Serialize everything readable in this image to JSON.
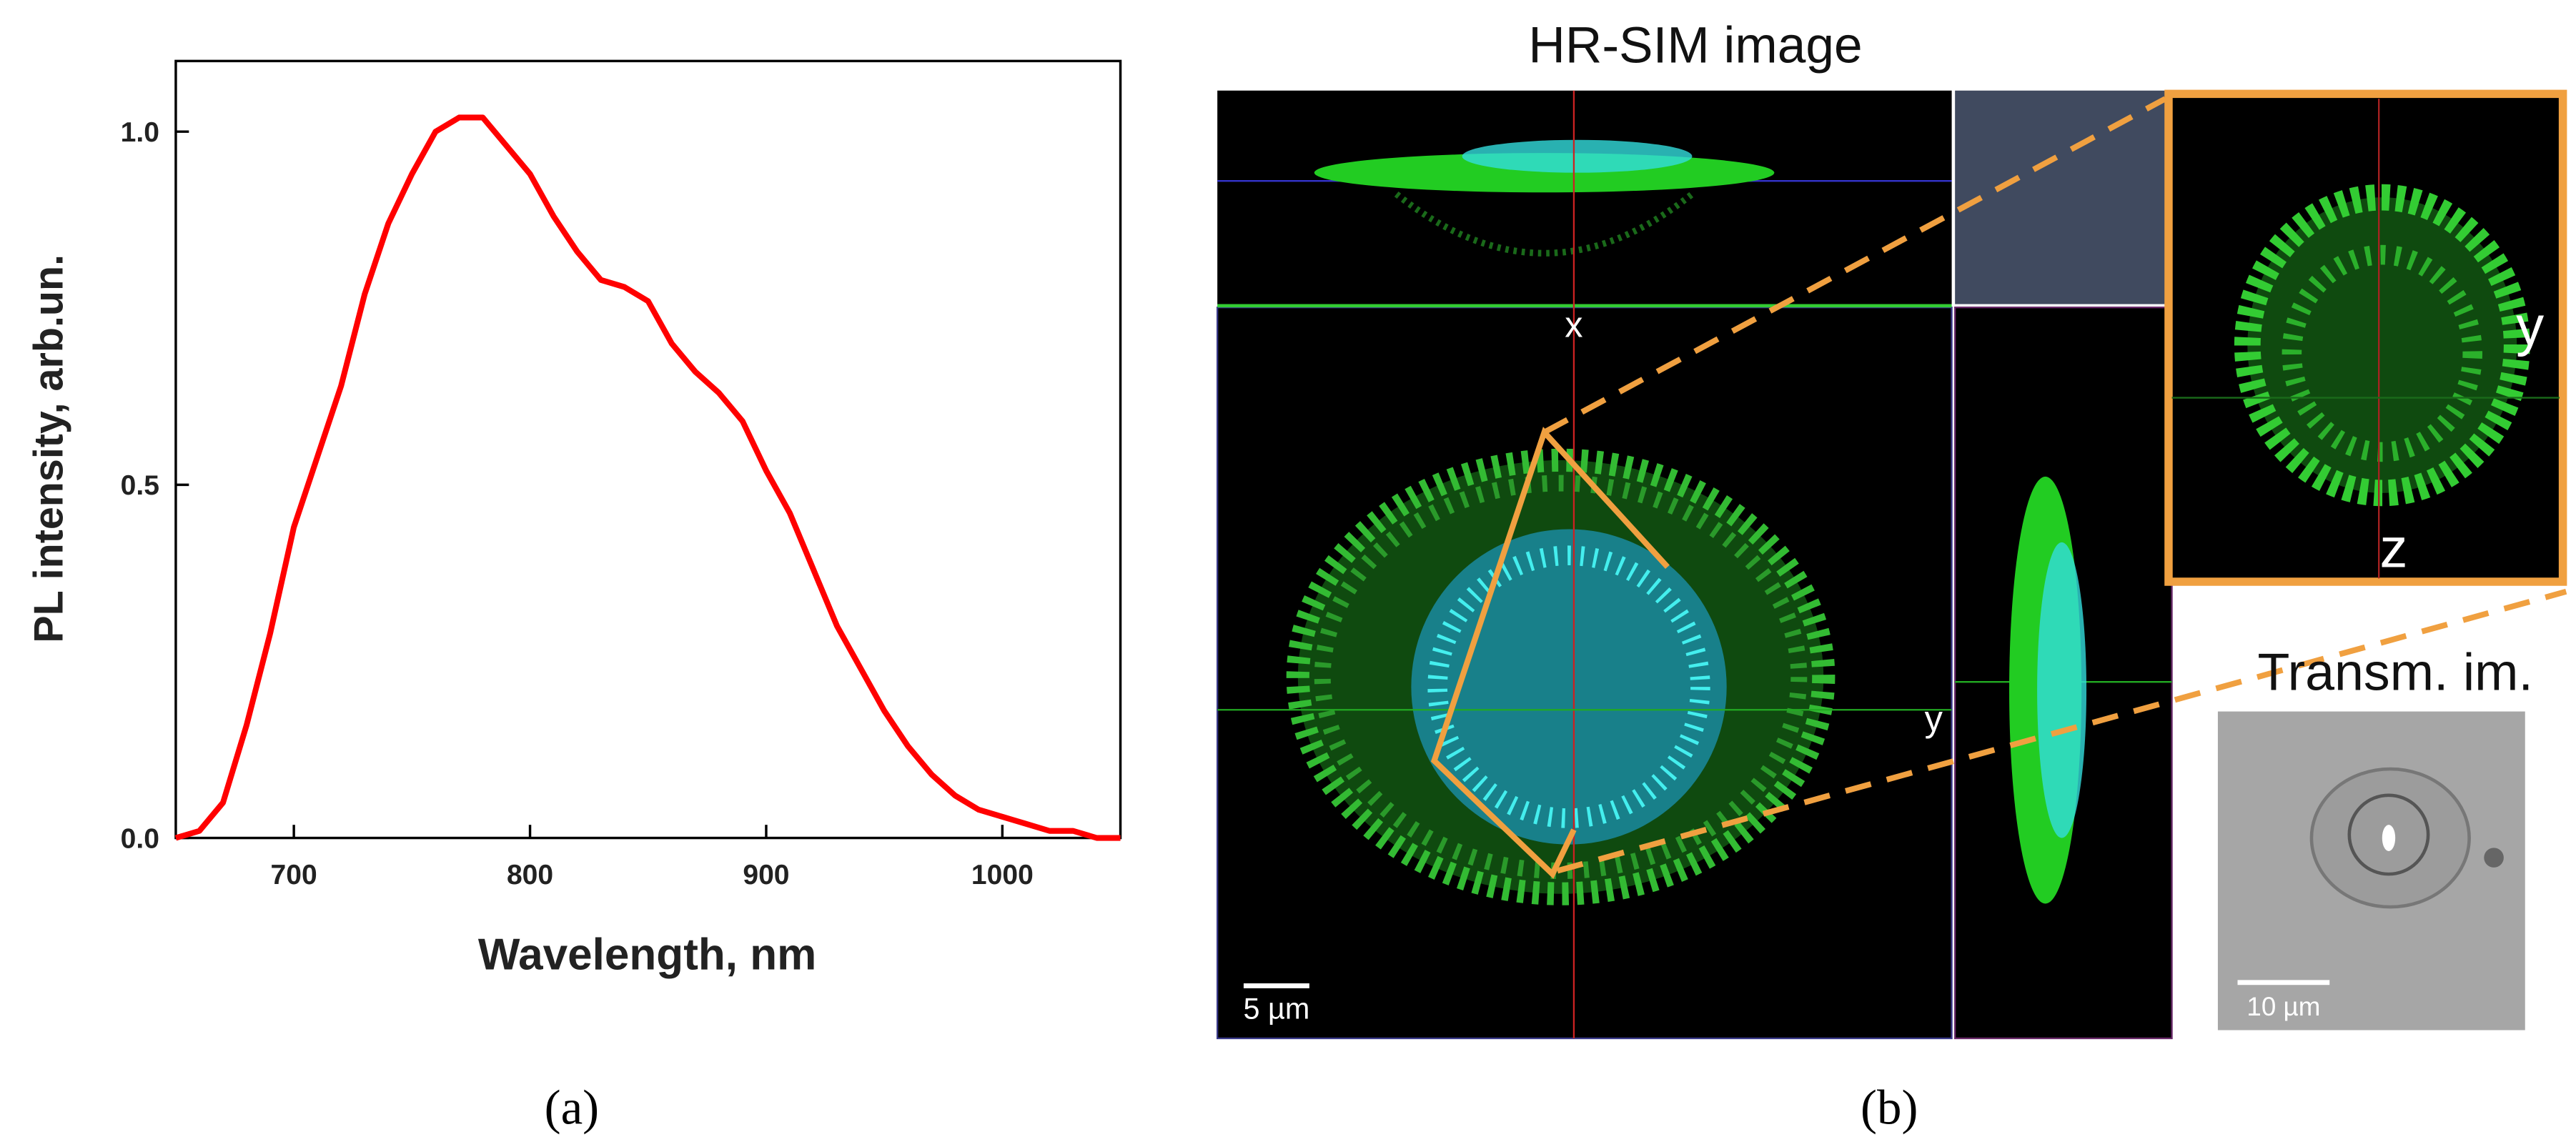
{
  "chart_data": {
    "type": "line",
    "xlabel": "Wavelength, nm",
    "ylabel": "PL intensity, arb.un.",
    "x": [
      650,
      660,
      670,
      680,
      690,
      700,
      710,
      720,
      730,
      740,
      750,
      760,
      770,
      780,
      790,
      800,
      810,
      820,
      830,
      840,
      850,
      860,
      870,
      880,
      890,
      900,
      910,
      920,
      930,
      940,
      950,
      960,
      970,
      980,
      990,
      1000,
      1010,
      1020,
      1030,
      1040,
      1050
    ],
    "series": [
      {
        "color": "#ff0000",
        "values": [
          0.0,
          0.01,
          0.05,
          0.16,
          0.29,
          0.44,
          0.54,
          0.64,
          0.77,
          0.87,
          0.94,
          1.0,
          1.02,
          1.02,
          0.98,
          0.94,
          0.88,
          0.83,
          0.79,
          0.78,
          0.76,
          0.7,
          0.66,
          0.63,
          0.59,
          0.52,
          0.46,
          0.38,
          0.3,
          0.24,
          0.18,
          0.13,
          0.09,
          0.06,
          0.04,
          0.03,
          0.02,
          0.01,
          0.01,
          0.0,
          0.0
        ]
      }
    ],
    "xlim": [
      650,
      1050
    ],
    "xticks": [
      700,
      800,
      900,
      1000
    ],
    "ylim": [
      0,
      1.1
    ],
    "yticks": [
      {
        "value": 0,
        "label": "0.0"
      },
      0.5,
      {
        "value": 1,
        "label": "1.0"
      }
    ]
  },
  "panel_b": {
    "title": "HR-SIM image",
    "axis_x": "x",
    "axis_y": "y",
    "scale_bar": "5 µm",
    "zoom_y": "y",
    "zoom_z": "z",
    "transm_title": "Transm. im.",
    "transm_scale_bar": "10 µm"
  },
  "labels": {
    "a": "(a)",
    "b": "(b)"
  }
}
